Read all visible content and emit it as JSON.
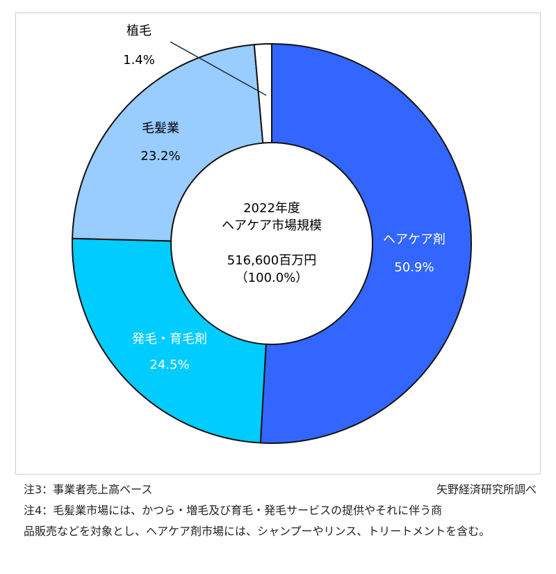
{
  "chart_data": {
    "type": "pie",
    "variant": "donut",
    "center_title": [
      "2022年度",
      "ヘアケア市場規模"
    ],
    "center_value": [
      "516,600百万円",
      "（100.0%）"
    ],
    "slices": [
      {
        "label": "ヘアケア剤",
        "value": 50.9,
        "value_label": "50.9%",
        "color": "#3366ff",
        "text_color": "#ffffff"
      },
      {
        "label": "発毛・育毛剤",
        "value": 24.5,
        "value_label": "24.5%",
        "color": "#00ccff",
        "text_color": "#ffffff"
      },
      {
        "label": "毛髪業",
        "value": 23.2,
        "value_label": "23.2%",
        "color": "#99ccff",
        "text_color": "#222222"
      },
      {
        "label": "植毛",
        "value": 1.4,
        "value_label": "1.4%",
        "color": "#ffffff",
        "text_color": "#222222"
      }
    ],
    "start_angle": "top",
    "direction": "clockwise"
  },
  "notes": {
    "note3": "注3：事業者売上高ベース",
    "source": "矢野経済研究所調べ",
    "note4_line1": "注4：毛髪業市場には、かつら・増毛及び育毛・発毛サービスの提供やそれに伴う商",
    "note4_line2": "品販売などを対象とし、ヘアケア剤市場には、シャンプーやリンス、トリートメントを含む。"
  }
}
